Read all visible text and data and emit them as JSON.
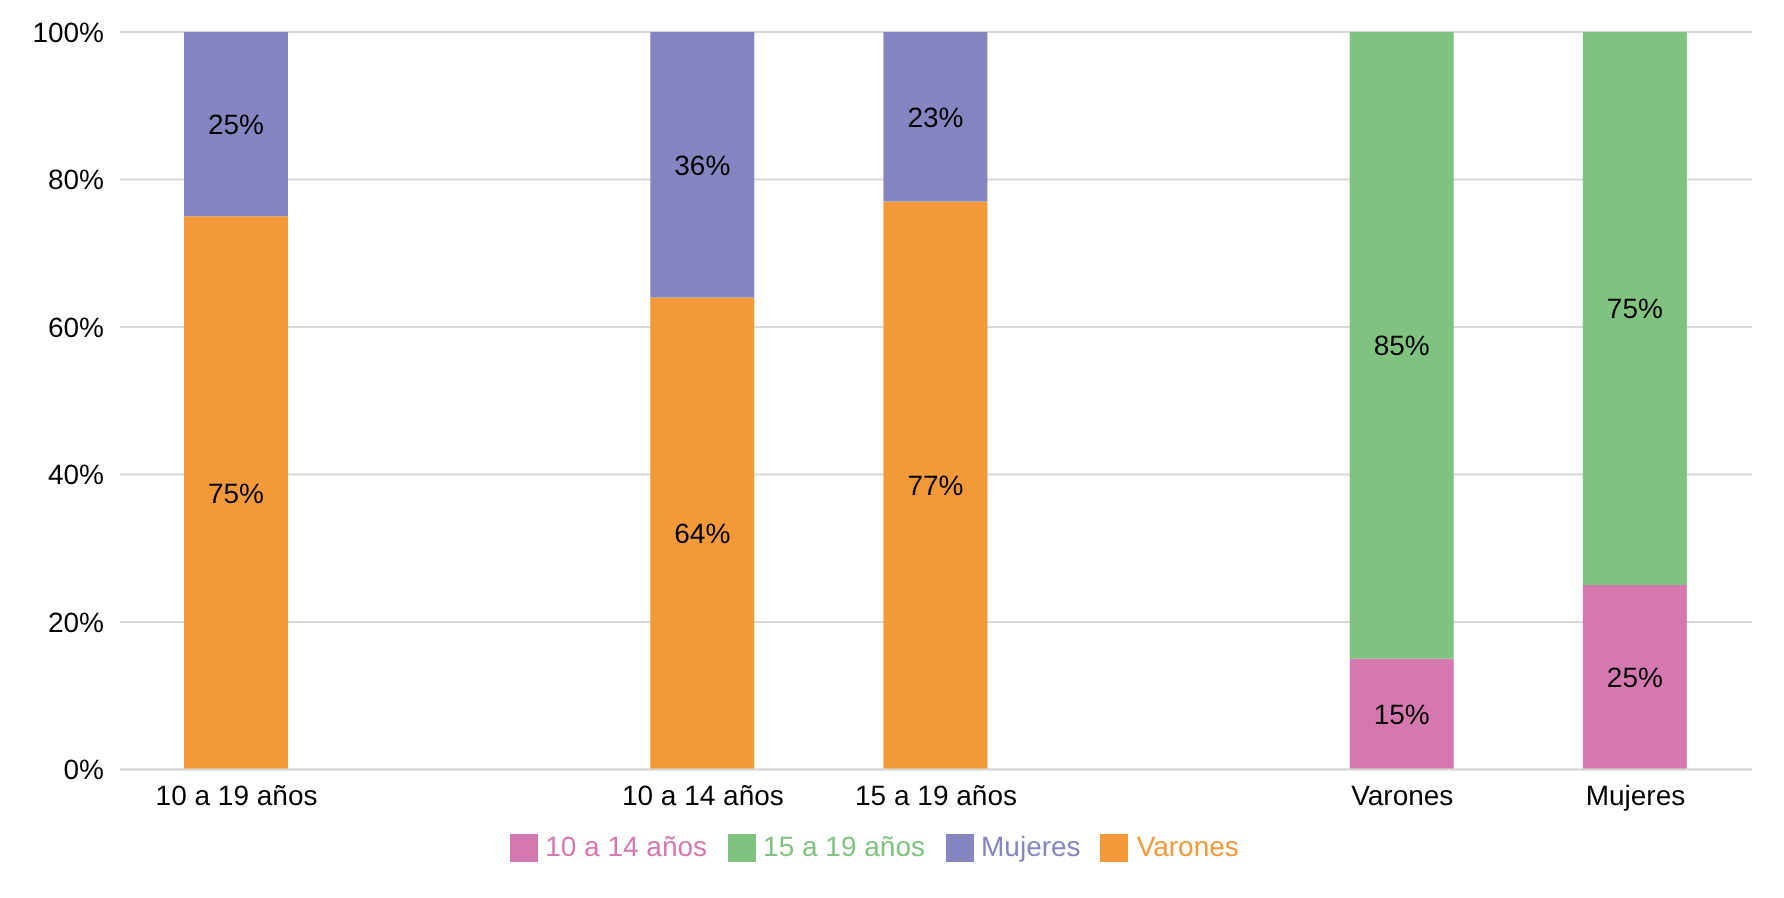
{
  "chart_data": {
    "type": "bar",
    "stacked": true,
    "categories": [
      "10 a 19 años",
      null,
      "10 a 14 años",
      "15 a 19 años",
      null,
      "Varones",
      "Mujeres"
    ],
    "series": [
      {
        "name": "Varones",
        "color": "#f4993a",
        "values": [
          75,
          null,
          64,
          77,
          null,
          null,
          null
        ],
        "value_labels": [
          "75%",
          null,
          "64%",
          "77%",
          null,
          null,
          null
        ]
      },
      {
        "name": "Mujeres",
        "color": "#8585c1",
        "values": [
          25,
          null,
          36,
          23,
          null,
          null,
          null
        ],
        "value_labels": [
          "25%",
          null,
          "36%",
          "23%",
          null,
          null,
          null
        ]
      },
      {
        "name": "10 a 14 años",
        "color": "#d678b0",
        "values": [
          null,
          null,
          null,
          null,
          null,
          15,
          25
        ],
        "value_labels": [
          null,
          null,
          null,
          null,
          null,
          "15%",
          "25%"
        ]
      },
      {
        "name": "15 a 19 años",
        "color": "#80c280",
        "values": [
          null,
          null,
          null,
          null,
          null,
          85,
          75
        ],
        "value_labels": [
          null,
          null,
          null,
          null,
          null,
          "85%",
          "75%"
        ]
      }
    ],
    "ylim": [
      0,
      100
    ],
    "yticks": [
      {
        "value": 0,
        "label": "0%"
      },
      {
        "value": 20,
        "label": "20%"
      },
      {
        "value": 40,
        "label": "40%"
      },
      {
        "value": 60,
        "label": "60%"
      },
      {
        "value": 80,
        "label": "80%"
      },
      {
        "value": 100,
        "label": "100%"
      }
    ],
    "grid": "y",
    "legend": "bottom"
  }
}
